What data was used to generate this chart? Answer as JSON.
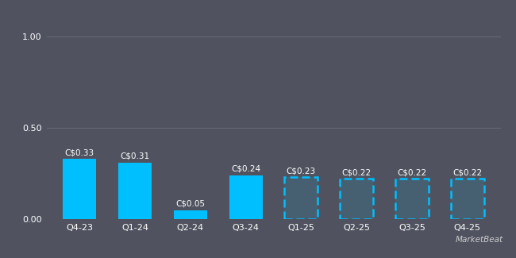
{
  "categories": [
    "Q4-23",
    "Q1-24",
    "Q2-24",
    "Q3-24",
    "Q1-25",
    "Q2-25",
    "Q3-25",
    "Q4-25"
  ],
  "values": [
    0.33,
    0.31,
    0.05,
    0.24,
    0.23,
    0.22,
    0.22,
    0.22
  ],
  "labels": [
    "C$0.33",
    "C$0.31",
    "C$0.05",
    "C$0.24",
    "C$0.23",
    "C$0.22",
    "C$0.22",
    "C$0.22"
  ],
  "is_estimate": [
    false,
    false,
    false,
    false,
    true,
    true,
    true,
    true
  ],
  "bar_color": "#00BFFF",
  "background_color": "#50535f",
  "text_color": "#ffffff",
  "grid_color": "#666977",
  "ylim": [
    0,
    1.0
  ],
  "yticks": [
    0.0,
    0.5,
    1.0
  ],
  "title_fontsize": 13,
  "label_fontsize": 7.5,
  "tick_fontsize": 8,
  "watermark": "MarketBeat"
}
